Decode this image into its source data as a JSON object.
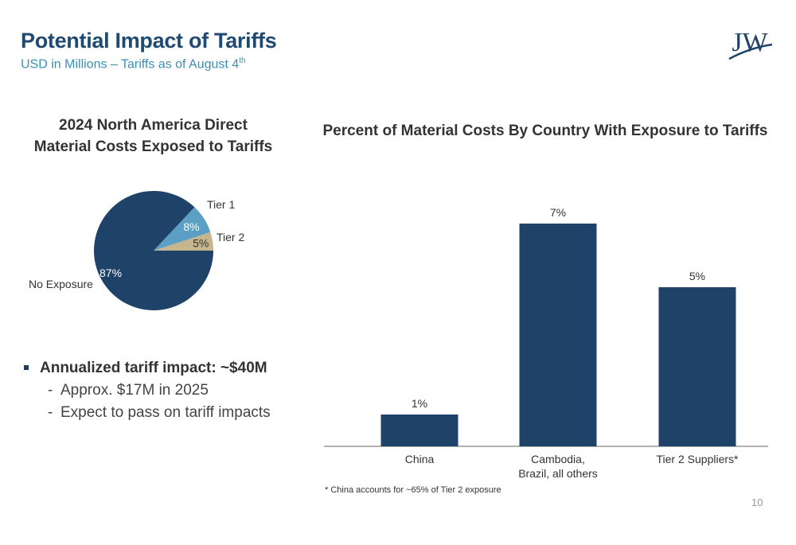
{
  "header": {
    "title": "Potential Impact of Tariffs",
    "subtitle_main": "USD in Millions – Tariffs as of August 4",
    "subtitle_sup": "th",
    "logo_text": "JW"
  },
  "colors": {
    "navy": "#1f4268",
    "light_blue": "#5b9fc4",
    "tan": "#c7b58d",
    "accent": "#3a8fb5"
  },
  "chart_data": [
    {
      "type": "pie",
      "title_line1": "2024 North America Direct",
      "title_line2": "Material Costs Exposed to Tariffs",
      "slices": [
        {
          "label": "No Exposure",
          "value": 87,
          "value_label": "87%",
          "color": "#1f4268"
        },
        {
          "label": "Tier 1",
          "value": 8,
          "value_label": "8%",
          "color": "#5b9fc4"
        },
        {
          "label": "Tier 2",
          "value": 5,
          "value_label": "5%",
          "color": "#c7b58d"
        }
      ]
    },
    {
      "type": "bar",
      "title": "Percent of Material Costs By Country With Exposure to Tariffs",
      "categories": [
        [
          "China"
        ],
        [
          "Cambodia,",
          "Brazil, all others"
        ],
        [
          "Tier 2 Suppliers*"
        ]
      ],
      "values": [
        1,
        7,
        5
      ],
      "value_labels": [
        "1%",
        "7%",
        "5%"
      ],
      "ylim": [
        0,
        7.5
      ],
      "color": "#1f4268"
    }
  ],
  "bullets": {
    "main": "Annualized tariff impact: ~$40M",
    "subs": [
      "Approx. $17M in 2025",
      "Expect to pass on tariff impacts"
    ]
  },
  "footnote": "* China accounts for ~65% of Tier 2 exposure",
  "page_number": "10"
}
